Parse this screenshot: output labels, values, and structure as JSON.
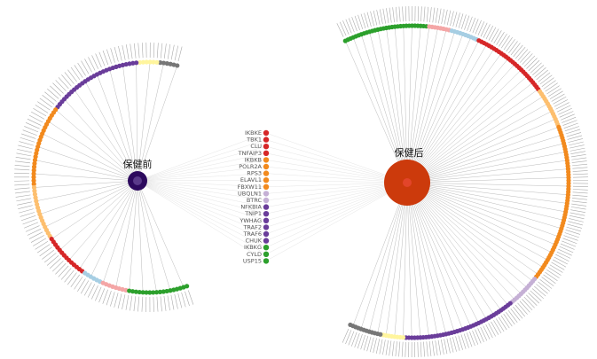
{
  "hubs": [
    {
      "label": "保健前"
    },
    {
      "label": "保健后"
    }
  ],
  "shared_nodes": [
    {
      "label": "IKBKE",
      "color": "#d62728"
    },
    {
      "label": "TBK1",
      "color": "#d62728"
    },
    {
      "label": "CLU",
      "color": "#d62728"
    },
    {
      "label": "TNFAIP3",
      "color": "#d62728"
    },
    {
      "label": "IKBKB",
      "color": "#f28a1e"
    },
    {
      "label": "POLR2A",
      "color": "#f28a1e"
    },
    {
      "label": "RPS3",
      "color": "#f28a1e"
    },
    {
      "label": "ELAVL1",
      "color": "#f28a1e"
    },
    {
      "label": "FBXW11",
      "color": "#f28a1e"
    },
    {
      "label": "UBQLN1",
      "color": "#c5b0d5"
    },
    {
      "label": "BTRC",
      "color": "#c5b0d5"
    },
    {
      "label": "NFKBIA",
      "color": "#6a3d9a"
    },
    {
      "label": "TNIP1",
      "color": "#6a3d9a"
    },
    {
      "label": "YWHAG",
      "color": "#6a3d9a"
    },
    {
      "label": "TRAF2",
      "color": "#6a3d9a"
    },
    {
      "label": "TRAF6",
      "color": "#6a3d9a"
    },
    {
      "label": "CHUK",
      "color": "#6a3d9a"
    },
    {
      "label": "IKBKG",
      "color": "#2ca02c"
    },
    {
      "label": "CYLD",
      "color": "#2ca02c"
    },
    {
      "label": "USP15",
      "color": "#2ca02c"
    }
  ]
}
